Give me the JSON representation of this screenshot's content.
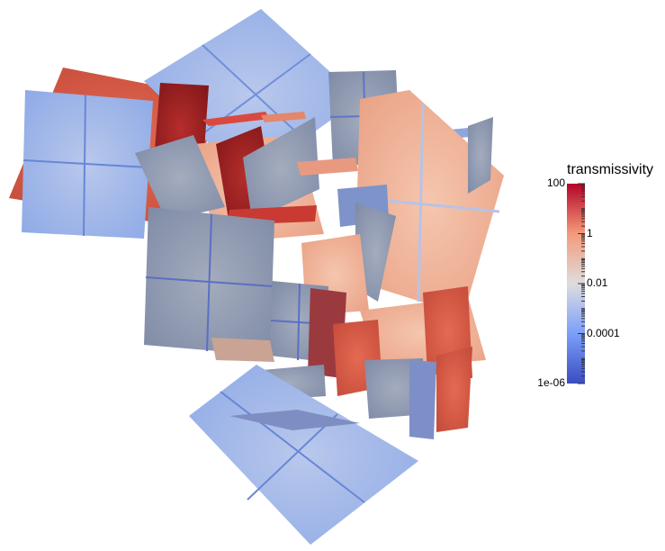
{
  "legend": {
    "title": "transmissivity",
    "scale": "log",
    "range": [
      "1e-06",
      "100"
    ],
    "colormap": "cool-to-warm",
    "colors": {
      "low": "#3b4cc0",
      "mid": "#dddddd",
      "high": "#b40426"
    },
    "ticks": [
      {
        "label": "100",
        "value": 100
      },
      {
        "label": "1",
        "value": 1
      },
      {
        "label": "0.01",
        "value": 0.01
      },
      {
        "label": "0.0001",
        "value": 0.0001
      },
      {
        "label": "1e-06",
        "value": 1e-06
      }
    ]
  }
}
